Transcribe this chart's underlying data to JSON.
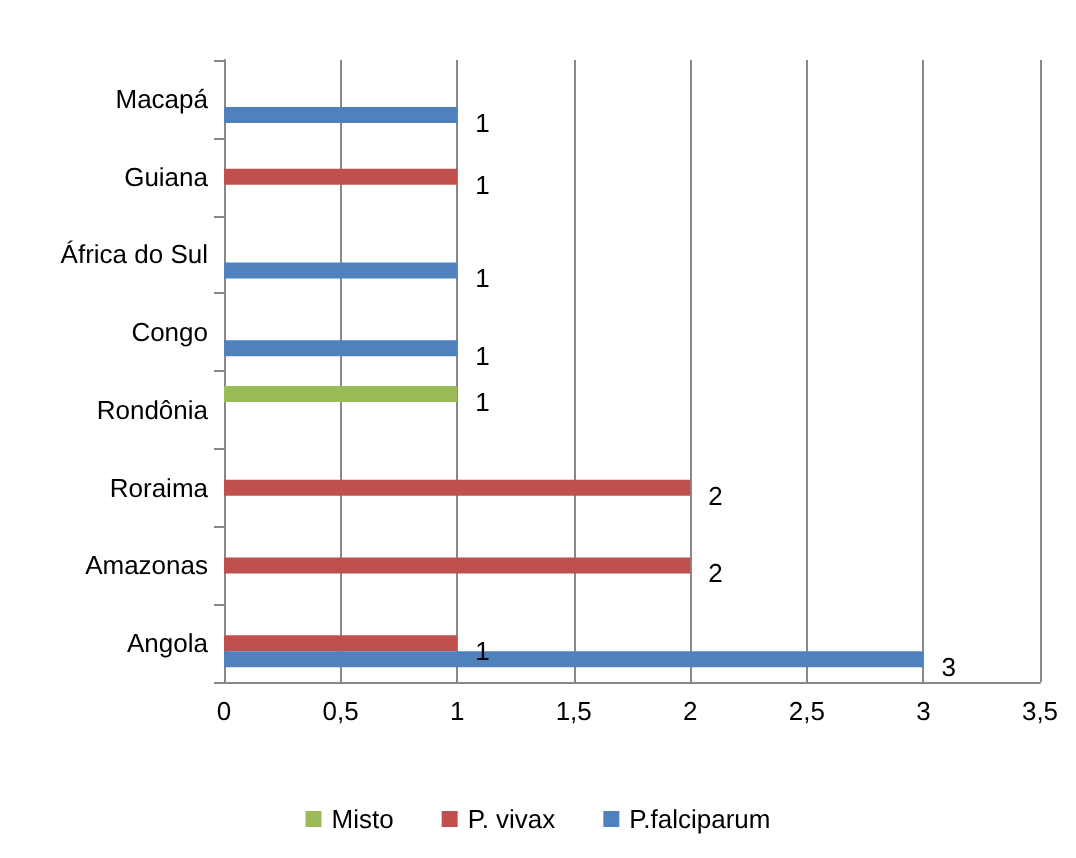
{
  "chart_data": {
    "type": "bar",
    "orientation": "horizontal",
    "categories": [
      "Macapá",
      "Guiana",
      "África do Sul",
      "Congo",
      "Rondônia",
      "Roraima",
      "Amazonas",
      "Angola"
    ],
    "series": [
      {
        "name": "Misto",
        "color": "#9bbb59",
        "values": [
          null,
          null,
          null,
          null,
          1,
          null,
          null,
          null
        ]
      },
      {
        "name": "P. vivax",
        "color": "#c0504d",
        "values": [
          null,
          1,
          null,
          null,
          null,
          2,
          2,
          1
        ]
      },
      {
        "name": "P.falciparum",
        "color": "#4f81bd",
        "values": [
          1,
          null,
          1,
          1,
          null,
          null,
          null,
          3
        ]
      }
    ],
    "xlim": [
      0,
      3.5
    ],
    "xticks": [
      0,
      {
        "value": 0.5,
        "label": "0,5"
      },
      1,
      {
        "value": 1.5,
        "label": "1,5"
      },
      2,
      {
        "value": 2.5,
        "label": "2,5"
      },
      3,
      {
        "value": 3.5,
        "label": "3,5"
      }
    ],
    "grid": "x",
    "legend": "bottom",
    "data_labels": true
  }
}
